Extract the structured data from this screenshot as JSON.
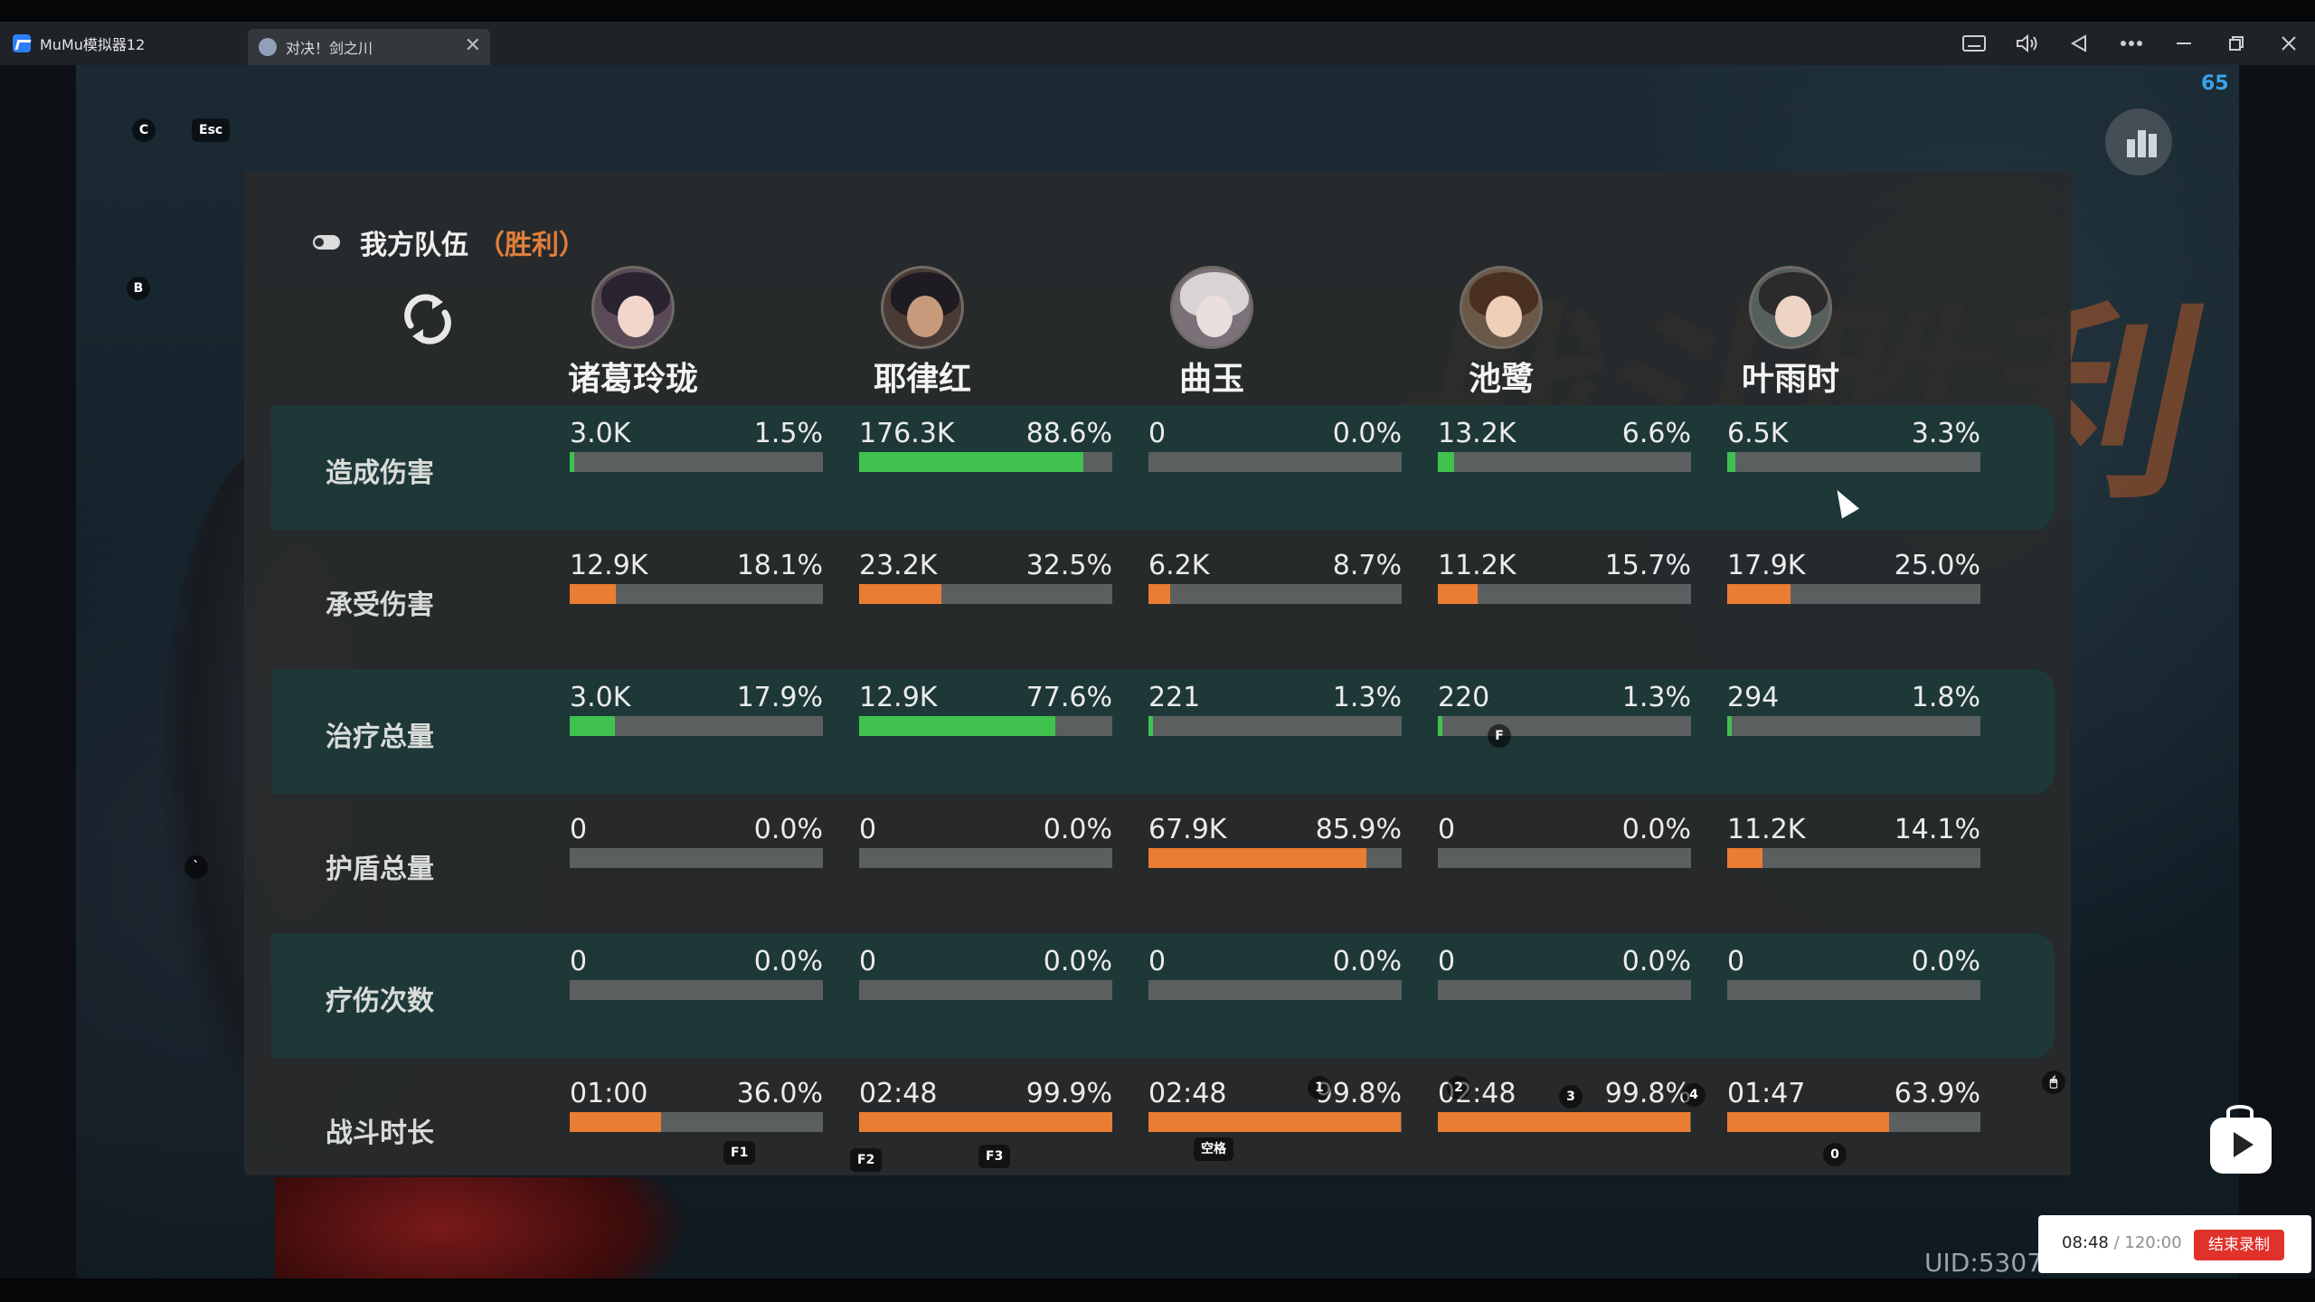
{
  "window": {
    "app_title": "MuMu模拟器12",
    "tab_title": "对决！剑之川",
    "tab_close": "✕",
    "controls": [
      "keyboard-icon",
      "volume-icon",
      "back-icon",
      "more-icon",
      "minimize-icon",
      "restore-icon",
      "close-icon"
    ]
  },
  "overlay": {
    "fps": "65",
    "hotkeys": [
      "C",
      "Esc",
      "B",
      "`",
      "F",
      "F1",
      "F2",
      "F3",
      "空格",
      "1",
      "2",
      "3",
      "4",
      "0"
    ],
    "uid": "UID:5307"
  },
  "panel": {
    "header_team": "我方队伍",
    "header_result": "（胜利）",
    "heroes": [
      "诸葛玲珑",
      "耶律红",
      "曲玉",
      "池鹭",
      "叶雨时"
    ],
    "rows": [
      {
        "label": "造成伤害",
        "color": "green",
        "cells": [
          {
            "value": "3.0K",
            "percent": "1.5%",
            "fill": 0.015
          },
          {
            "value": "176.3K",
            "percent": "88.6%",
            "fill": 0.886
          },
          {
            "value": "0",
            "percent": "0.0%",
            "fill": 0.0
          },
          {
            "value": "13.2K",
            "percent": "6.6%",
            "fill": 0.066
          },
          {
            "value": "6.5K",
            "percent": "3.3%",
            "fill": 0.033
          }
        ]
      },
      {
        "label": "承受伤害",
        "color": "orange",
        "cells": [
          {
            "value": "12.9K",
            "percent": "18.1%",
            "fill": 0.181
          },
          {
            "value": "23.2K",
            "percent": "32.5%",
            "fill": 0.325
          },
          {
            "value": "6.2K",
            "percent": "8.7%",
            "fill": 0.087
          },
          {
            "value": "11.2K",
            "percent": "15.7%",
            "fill": 0.157
          },
          {
            "value": "17.9K",
            "percent": "25.0%",
            "fill": 0.25
          }
        ]
      },
      {
        "label": "治疗总量",
        "color": "green",
        "cells": [
          {
            "value": "3.0K",
            "percent": "17.9%",
            "fill": 0.179
          },
          {
            "value": "12.9K",
            "percent": "77.6%",
            "fill": 0.776
          },
          {
            "value": "221",
            "percent": "1.3%",
            "fill": 0.013
          },
          {
            "value": "220",
            "percent": "1.3%",
            "fill": 0.013
          },
          {
            "value": "294",
            "percent": "1.8%",
            "fill": 0.018
          }
        ]
      },
      {
        "label": "护盾总量",
        "color": "orange",
        "cells": [
          {
            "value": "0",
            "percent": "0.0%",
            "fill": 0.0
          },
          {
            "value": "0",
            "percent": "0.0%",
            "fill": 0.0
          },
          {
            "value": "67.9K",
            "percent": "85.9%",
            "fill": 0.859
          },
          {
            "value": "0",
            "percent": "0.0%",
            "fill": 0.0
          },
          {
            "value": "11.2K",
            "percent": "14.1%",
            "fill": 0.141
          }
        ]
      },
      {
        "label": "疗伤次数",
        "color": "green",
        "cells": [
          {
            "value": "0",
            "percent": "0.0%",
            "fill": 0.0
          },
          {
            "value": "0",
            "percent": "0.0%",
            "fill": 0.0
          },
          {
            "value": "0",
            "percent": "0.0%",
            "fill": 0.0
          },
          {
            "value": "0",
            "percent": "0.0%",
            "fill": 0.0
          },
          {
            "value": "0",
            "percent": "0.0%",
            "fill": 0.0
          }
        ]
      },
      {
        "label": "战斗时长",
        "color": "orange",
        "cells": [
          {
            "value": "01:00",
            "percent": "36.0%",
            "fill": 0.36
          },
          {
            "value": "02:48",
            "percent": "99.9%",
            "fill": 0.999
          },
          {
            "value": "02:48",
            "percent": "99.8%",
            "fill": 0.998
          },
          {
            "value": "02:48",
            "percent": "99.8%",
            "fill": 0.998
          },
          {
            "value": "01:47",
            "percent": "63.9%",
            "fill": 0.639
          }
        ]
      }
    ]
  },
  "background": {
    "watermark": "战斗胜利"
  },
  "recording": {
    "elapsed": "08:48",
    "total": " / 120:00",
    "stop_label": "结束录制"
  },
  "colors": {
    "green": "#3fc24e",
    "orange": "#ea7d33",
    "accent": "#e07f3a",
    "fps": "#3aa0e8"
  }
}
